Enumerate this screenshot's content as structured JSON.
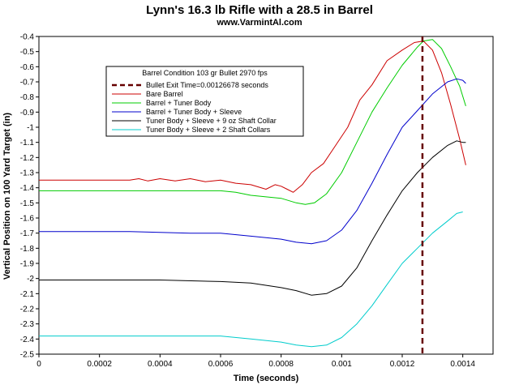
{
  "chart_data": {
    "type": "line",
    "title": "Lynn's 16.3 lb Rifle with a 28.5 in Barrel",
    "subtitle": "www.VarmintAl.com",
    "xlabel": "Time (seconds)",
    "ylabel": "Vertical Position on 100 Yard Target (in)",
    "xlim": [
      0,
      0.0015
    ],
    "ylim": [
      -2.5,
      -0.4
    ],
    "x_ticks": [
      0,
      0.0002,
      0.0004,
      0.0006,
      0.0008,
      0.001,
      0.0012,
      0.0014
    ],
    "x_tick_labels": [
      "0",
      "0.0002",
      "0.0004",
      "0.0006",
      "0.0008",
      "0.001",
      "0.0012",
      "0.0014"
    ],
    "y_ticks": [
      -0.4,
      -0.5,
      -0.6,
      -0.7,
      -0.8,
      -0.9,
      -1,
      -1.1,
      -1.2,
      -1.3,
      -1.4,
      -1.5,
      -1.6,
      -1.7,
      -1.8,
      -1.9,
      -2,
      -2.1,
      -2.2,
      -2.3,
      -2.4,
      -2.5
    ],
    "y_tick_labels": [
      "-0.4",
      "-0.5",
      "-0.6",
      "-0.7",
      "-0.8",
      "-0.9",
      "-1",
      "-1.1",
      "-1.2",
      "-1.3",
      "-1.4",
      "-1.5",
      "-1.6",
      "-1.7",
      "-1.8",
      "-1.9",
      "-2",
      "-2.1",
      "-2.2",
      "-2.3",
      "-2.4",
      "-2.5"
    ],
    "grid": false,
    "legend": {
      "placement": "top-left",
      "title": "Barrel Condition 103 gr Bullet 2970 fps"
    },
    "vline": {
      "x": 0.00126678,
      "name": "Bullet Exit Time=0.00126678 seconds",
      "color": "#660000",
      "style": "dashed"
    },
    "series": [
      {
        "name": "Bare Barrel",
        "color": "#cc0000",
        "points": [
          [
            0,
            -1.35
          ],
          [
            0.0003,
            -1.35
          ],
          [
            0.00033,
            -1.34
          ],
          [
            0.00036,
            -1.355
          ],
          [
            0.0004,
            -1.34
          ],
          [
            0.00045,
            -1.355
          ],
          [
            0.0005,
            -1.34
          ],
          [
            0.00055,
            -1.36
          ],
          [
            0.0006,
            -1.35
          ],
          [
            0.00065,
            -1.37
          ],
          [
            0.0007,
            -1.38
          ],
          [
            0.00075,
            -1.41
          ],
          [
            0.00078,
            -1.38
          ],
          [
            0.0008,
            -1.39
          ],
          [
            0.00082,
            -1.41
          ],
          [
            0.00084,
            -1.43
          ],
          [
            0.00087,
            -1.38
          ],
          [
            0.0009,
            -1.3
          ],
          [
            0.00094,
            -1.24
          ],
          [
            0.00098,
            -1.12
          ],
          [
            0.00102,
            -1.0
          ],
          [
            0.00106,
            -0.82
          ],
          [
            0.0011,
            -0.72
          ],
          [
            0.00115,
            -0.56
          ],
          [
            0.0012,
            -0.49
          ],
          [
            0.00124,
            -0.44
          ],
          [
            0.00127,
            -0.43
          ],
          [
            0.0013,
            -0.49
          ],
          [
            0.00133,
            -0.64
          ],
          [
            0.00136,
            -0.85
          ],
          [
            0.00139,
            -1.08
          ],
          [
            0.00141,
            -1.25
          ]
        ]
      },
      {
        "name": "Barrel + Tuner Body",
        "color": "#00cc00",
        "points": [
          [
            0,
            -1.42
          ],
          [
            0.0004,
            -1.42
          ],
          [
            0.0006,
            -1.42
          ],
          [
            0.00065,
            -1.43
          ],
          [
            0.0007,
            -1.45
          ],
          [
            0.00075,
            -1.46
          ],
          [
            0.0008,
            -1.47
          ],
          [
            0.00085,
            -1.5
          ],
          [
            0.00088,
            -1.51
          ],
          [
            0.00091,
            -1.5
          ],
          [
            0.00095,
            -1.44
          ],
          [
            0.001,
            -1.3
          ],
          [
            0.00105,
            -1.1
          ],
          [
            0.0011,
            -0.9
          ],
          [
            0.00115,
            -0.74
          ],
          [
            0.0012,
            -0.59
          ],
          [
            0.00125,
            -0.47
          ],
          [
            0.00127,
            -0.43
          ],
          [
            0.0013,
            -0.42
          ],
          [
            0.00133,
            -0.48
          ],
          [
            0.00136,
            -0.6
          ],
          [
            0.00139,
            -0.73
          ],
          [
            0.00141,
            -0.86
          ]
        ]
      },
      {
        "name": "Barrel + Tuner Body + Sleeve",
        "color": "#0000cc",
        "points": [
          [
            0,
            -1.69
          ],
          [
            0.0003,
            -1.69
          ],
          [
            0.0005,
            -1.7
          ],
          [
            0.0006,
            -1.7
          ],
          [
            0.0007,
            -1.72
          ],
          [
            0.0008,
            -1.74
          ],
          [
            0.00085,
            -1.76
          ],
          [
            0.0009,
            -1.77
          ],
          [
            0.00095,
            -1.75
          ],
          [
            0.001,
            -1.68
          ],
          [
            0.00105,
            -1.55
          ],
          [
            0.0011,
            -1.37
          ],
          [
            0.00115,
            -1.18
          ],
          [
            0.0012,
            -1.0
          ],
          [
            0.00125,
            -0.89
          ],
          [
            0.0013,
            -0.78
          ],
          [
            0.00135,
            -0.7
          ],
          [
            0.00138,
            -0.68
          ],
          [
            0.0014,
            -0.69
          ],
          [
            0.00141,
            -0.71
          ]
        ]
      },
      {
        "name": "Tuner Body + Sleeve + 9 oz Shaft Collar",
        "color": "#000000",
        "points": [
          [
            0,
            -2.01
          ],
          [
            0.0004,
            -2.01
          ],
          [
            0.0006,
            -2.02
          ],
          [
            0.0007,
            -2.03
          ],
          [
            0.0008,
            -2.06
          ],
          [
            0.00085,
            -2.08
          ],
          [
            0.0009,
            -2.11
          ],
          [
            0.00095,
            -2.1
          ],
          [
            0.001,
            -2.05
          ],
          [
            0.00105,
            -1.93
          ],
          [
            0.0011,
            -1.75
          ],
          [
            0.00115,
            -1.58
          ],
          [
            0.0012,
            -1.42
          ],
          [
            0.00125,
            -1.3
          ],
          [
            0.0013,
            -1.2
          ],
          [
            0.00135,
            -1.12
          ],
          [
            0.00138,
            -1.09
          ],
          [
            0.0014,
            -1.1
          ],
          [
            0.00141,
            -1.1
          ]
        ]
      },
      {
        "name": "Tuner Body + Sleeve + 2 Shaft Collars",
        "color": "#00cccc",
        "points": [
          [
            0,
            -2.38
          ],
          [
            0.0004,
            -2.38
          ],
          [
            0.0006,
            -2.38
          ],
          [
            0.0007,
            -2.4
          ],
          [
            0.0008,
            -2.42
          ],
          [
            0.00085,
            -2.44
          ],
          [
            0.0009,
            -2.45
          ],
          [
            0.00095,
            -2.44
          ],
          [
            0.001,
            -2.39
          ],
          [
            0.00105,
            -2.3
          ],
          [
            0.0011,
            -2.18
          ],
          [
            0.00115,
            -2.04
          ],
          [
            0.0012,
            -1.9
          ],
          [
            0.00125,
            -1.8
          ],
          [
            0.0013,
            -1.7
          ],
          [
            0.00135,
            -1.62
          ],
          [
            0.00138,
            -1.57
          ],
          [
            0.0014,
            -1.56
          ]
        ]
      }
    ]
  }
}
